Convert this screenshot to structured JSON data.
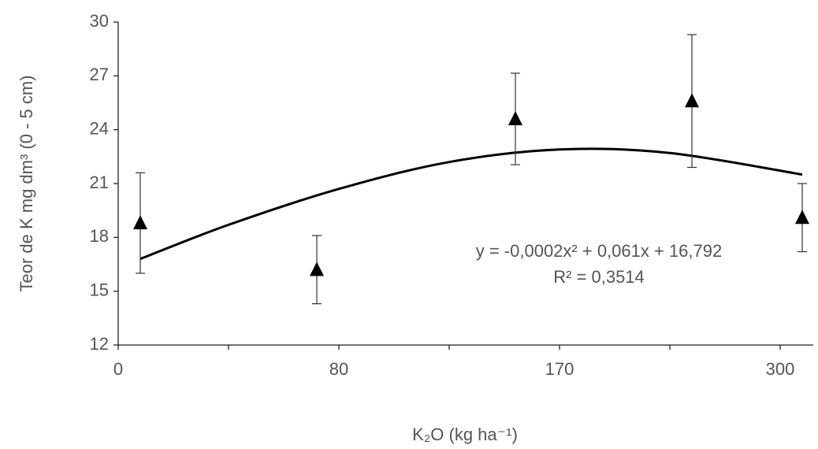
{
  "chart_data": {
    "type": "scatter",
    "xlabel": "K₂O (kg ha⁻¹)",
    "ylabel": "Teor de K mg dm³ (0 - 5 cm)",
    "xlim": [
      0,
      6.3
    ],
    "xticks": [
      {
        "value": 0,
        "label": "0"
      },
      {
        "value": 1,
        "label": null
      },
      {
        "value": 2,
        "label": "80"
      },
      {
        "value": 3,
        "label": null
      },
      {
        "value": 4,
        "label": "170"
      },
      {
        "value": 5,
        "label": null
      },
      {
        "value": 6,
        "label": "300"
      }
    ],
    "ylim": [
      12,
      30
    ],
    "yticks": [
      12,
      15,
      18,
      21,
      24,
      27,
      30
    ],
    "series": [
      {
        "name": null,
        "color": "#000000",
        "x": [
          0.2,
          1.8,
          3.6,
          5.2,
          6.2
        ],
        "values": [
          18.8,
          16.2,
          24.6,
          25.6,
          19.1
        ],
        "errors": [
          2.8,
          1.9,
          2.55,
          3.7,
          1.9
        ]
      }
    ],
    "trendline": {
      "color": "#000000",
      "x": [
        0.2,
        1,
        2,
        3,
        4,
        5,
        6.2
      ],
      "values": [
        16.8,
        18.7,
        20.7,
        22.2,
        22.9,
        22.7,
        21.5
      ]
    },
    "annotations": [
      "y = -0,0002x² + 0,061x + 16,792",
      "R² = 0,3514"
    ]
  }
}
